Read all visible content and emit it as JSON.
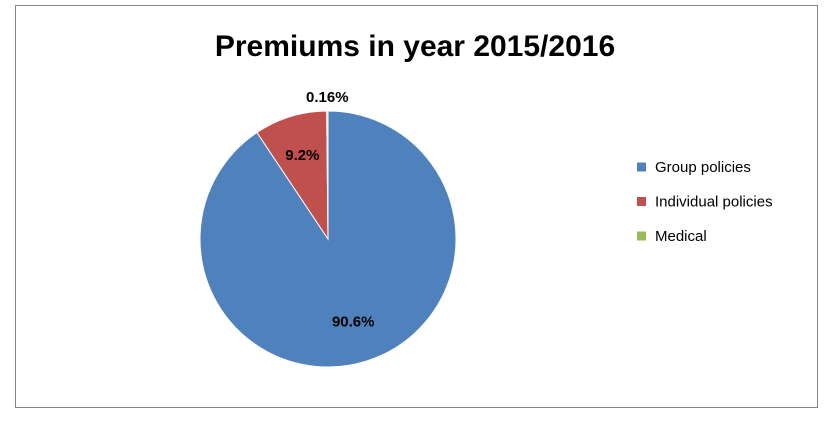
{
  "chart_data": {
    "type": "pie",
    "title": "Premiums in year 2015/2016",
    "categories": [
      "Group policies",
      "Individual policies",
      "Medical"
    ],
    "values": [
      90.6,
      9.2,
      0.16
    ],
    "value_labels": [
      "90.6%",
      "9.2%",
      "0.16%"
    ],
    "colors": [
      "#4f81bd",
      "#c0504d",
      "#9bbb59"
    ],
    "legend": "right"
  }
}
